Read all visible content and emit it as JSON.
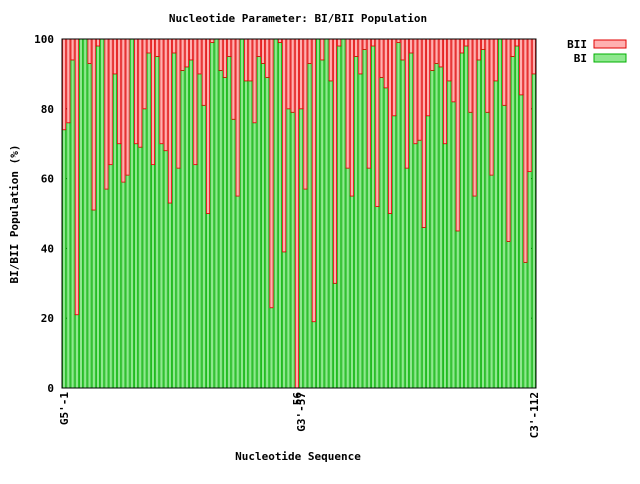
{
  "chart_data": {
    "type": "stacked_bar",
    "title": "Nucleotide Parameter: BI/BII Population",
    "x_label": "Nucleotide Sequence",
    "y_label": "BI/BII Population (%)",
    "categories": [
      "G5'-1",
      null,
      null,
      null,
      null,
      null,
      null,
      null,
      null,
      null,
      null,
      null,
      null,
      null,
      null,
      null,
      null,
      null,
      null,
      null,
      null,
      null,
      null,
      null,
      null,
      null,
      null,
      null,
      null,
      null,
      null,
      null,
      null,
      null,
      null,
      null,
      null,
      null,
      null,
      null,
      null,
      null,
      null,
      null,
      null,
      null,
      null,
      null,
      null,
      null,
      null,
      null,
      null,
      null,
      null,
      "56",
      "G3'-57",
      null,
      null,
      null,
      null,
      null,
      null,
      null,
      null,
      null,
      null,
      null,
      null,
      null,
      null,
      null,
      null,
      null,
      null,
      null,
      null,
      null,
      null,
      null,
      null,
      null,
      null,
      null,
      null,
      null,
      null,
      null,
      null,
      null,
      null,
      null,
      null,
      null,
      null,
      null,
      null,
      null,
      null,
      null,
      null,
      null,
      null,
      null,
      null,
      null,
      null,
      null,
      null,
      null,
      null,
      "C3'-112"
    ],
    "series": [
      {
        "name": "BI",
        "color": "#00b000",
        "fill": "#8fe88f",
        "values": [
          74,
          76,
          94,
          21,
          100,
          100,
          93,
          51,
          98,
          100,
          57,
          64,
          90,
          70,
          59,
          61,
          100,
          70,
          69,
          80,
          96,
          64,
          95,
          70,
          68,
          53,
          96,
          63,
          91,
          92,
          94,
          64,
          90,
          81,
          50,
          99,
          100,
          91,
          89,
          95,
          77,
          55,
          100,
          88,
          88,
          76,
          95,
          93,
          89,
          23,
          100,
          99,
          39,
          80,
          79,
          0,
          80,
          57,
          93,
          19,
          100,
          94,
          100,
          88,
          30,
          98,
          100,
          63,
          55,
          95,
          90,
          97,
          63,
          98,
          52,
          89,
          86,
          50,
          78,
          99,
          94,
          63,
          96,
          70,
          71,
          46,
          78,
          91,
          93,
          92,
          70,
          88,
          82,
          45,
          96,
          98,
          79,
          55,
          94,
          97,
          79,
          61,
          88,
          100,
          81,
          42,
          95,
          98,
          84,
          36,
          62,
          90
        ]
      },
      {
        "name": "BII",
        "color": "#e00000",
        "fill": "#ffb0b0",
        "values": [
          26,
          24,
          6,
          79,
          0,
          0,
          7,
          49,
          2,
          0,
          43,
          36,
          10,
          30,
          41,
          39,
          0,
          30,
          31,
          20,
          4,
          36,
          5,
          30,
          32,
          47,
          4,
          37,
          9,
          8,
          6,
          36,
          10,
          19,
          50,
          1,
          0,
          9,
          11,
          5,
          23,
          45,
          0,
          12,
          12,
          24,
          5,
          7,
          11,
          77,
          0,
          1,
          61,
          20,
          21,
          100,
          20,
          43,
          7,
          81,
          0,
          6,
          0,
          12,
          70,
          2,
          0,
          37,
          45,
          5,
          10,
          3,
          37,
          2,
          48,
          11,
          14,
          50,
          22,
          1,
          6,
          37,
          4,
          30,
          29,
          54,
          22,
          9,
          7,
          8,
          30,
          12,
          18,
          55,
          4,
          2,
          21,
          45,
          6,
          3,
          21,
          39,
          12,
          0,
          19,
          58,
          5,
          2,
          16,
          64,
          38,
          10
        ]
      }
    ],
    "ylim": [
      0,
      100
    ],
    "yticks": [
      0,
      20,
      40,
      60,
      80,
      100
    ],
    "legend": "top-right-outside"
  }
}
